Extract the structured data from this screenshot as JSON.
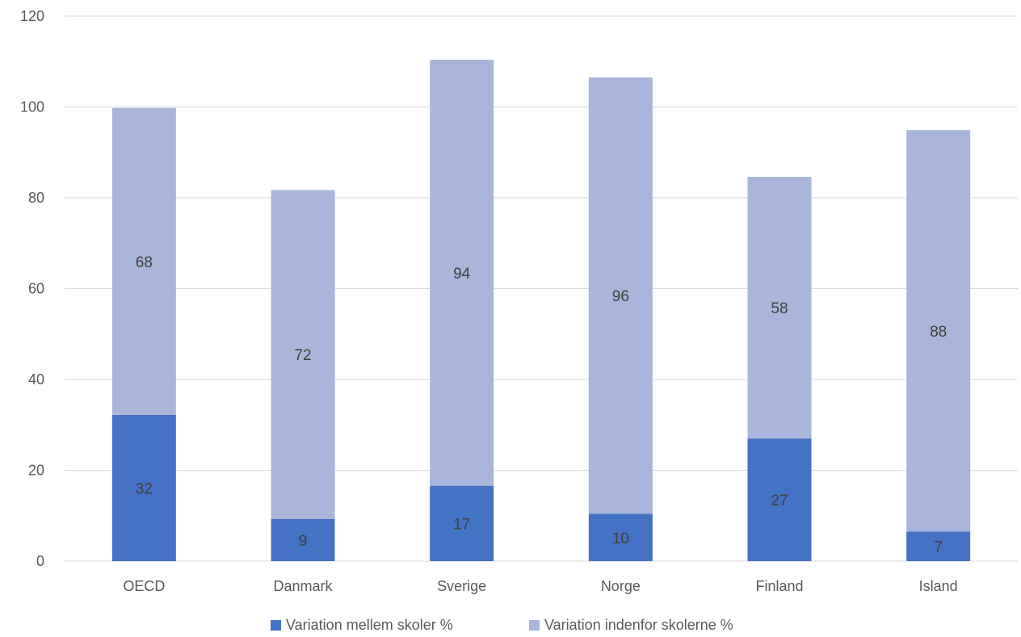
{
  "chart_data": {
    "type": "bar",
    "stacked": true,
    "categories": [
      "OECD",
      "Danmark",
      "Sverige",
      "Norge",
      "Finland",
      "Island"
    ],
    "series": [
      {
        "name": "Variation mellem skoler %",
        "values": [
          32,
          9,
          17,
          10,
          27,
          7
        ],
        "heights": [
          32.2,
          9.3,
          16.6,
          10.4,
          27.0,
          6.5
        ],
        "color": "#4472c4"
      },
      {
        "name": "Variation indenfor skolerne %",
        "values": [
          68,
          72,
          94,
          96,
          58,
          88
        ],
        "heights": [
          67.6,
          72.4,
          93.8,
          96.1,
          57.6,
          88.4
        ],
        "color": "#a9b5db"
      }
    ],
    "y_ticks": [
      "0",
      "20",
      "40",
      "60",
      "80",
      "100",
      "120"
    ],
    "ylim": [
      0,
      120
    ],
    "grid": true,
    "legend_position": "bottom",
    "xlabel": "",
    "ylabel": "",
    "title": ""
  },
  "colors": {
    "gridline": "#d9d9d9",
    "axis": "#d9d9d9"
  }
}
